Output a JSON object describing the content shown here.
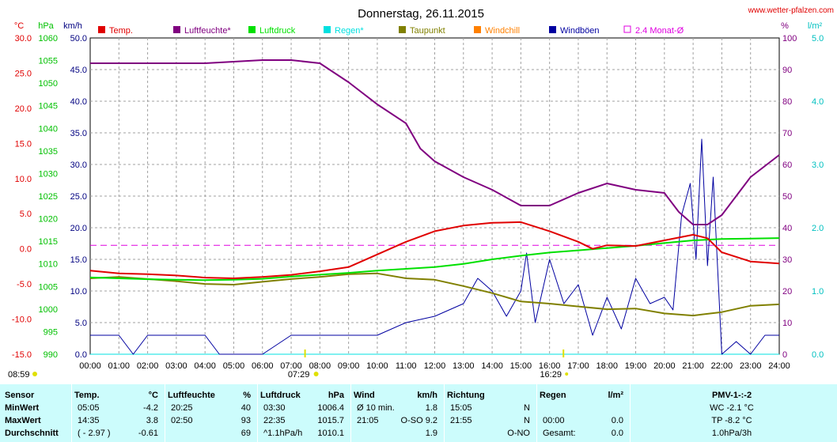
{
  "header": {
    "title": "Donnerstag, 26.11.2015",
    "site": "www.wetter-pfalzen.com",
    "units_left": [
      "°C",
      "hPa",
      "km/h"
    ],
    "units_right": [
      "%",
      "l/m²"
    ]
  },
  "legend": [
    {
      "label": "Temp.",
      "color": "#e00000"
    },
    {
      "label": "Luftfeuchte*",
      "color": "#800080"
    },
    {
      "label": "Luftdruck",
      "color": "#00e000"
    },
    {
      "label": "Regen*",
      "color": "#00e0e0"
    },
    {
      "label": "Taupunkt",
      "color": "#808000"
    },
    {
      "label": "Windchill",
      "color": "#ff8000"
    },
    {
      "label": "Windböen",
      "color": "#0000a0"
    },
    {
      "label": "2.4 Monat-Ø",
      "color": "#e000e0"
    }
  ],
  "sun": {
    "rise": "07:29",
    "set": "16:29",
    "prev_set": "08:59"
  },
  "chart_data": {
    "type": "line",
    "x_ticks": [
      "00:00",
      "01:00",
      "02:00",
      "03:00",
      "04:00",
      "05:00",
      "06:00",
      "07:00",
      "08:00",
      "09:00",
      "10:00",
      "11:00",
      "12:00",
      "13:00",
      "14:00",
      "15:00",
      "16:00",
      "17:00",
      "18:00",
      "19:00",
      "20:00",
      "21:00",
      "22:00",
      "23:00",
      "24:00"
    ],
    "axes": {
      "temp_c": {
        "min": -15,
        "max": 30,
        "ticks": [
          "30.0",
          "25.0",
          "20.0",
          "15.0",
          "10.0",
          "5.0",
          "0.0",
          "-5.0",
          "-10.0",
          "-15.0"
        ],
        "color": "#e00000"
      },
      "pressure_hpa": {
        "min": 990,
        "max": 1060,
        "ticks": [
          "1060",
          "1055",
          "1050",
          "1045",
          "1040",
          "1035",
          "1030",
          "1025",
          "1020",
          "1015",
          "1010",
          "1005",
          "1000",
          "995",
          "990"
        ],
        "color": "#00c000"
      },
      "wind_kmh": {
        "min": 0,
        "max": 50,
        "ticks": [
          "50.0",
          "45.0",
          "40.0",
          "35.0",
          "30.0",
          "25.0",
          "20.0",
          "15.0",
          "10.0",
          "5.0",
          "0.0"
        ],
        "color": "#000080"
      },
      "humidity_pct": {
        "min": 0,
        "max": 100,
        "ticks": [
          "100",
          "90",
          "80",
          "70",
          "60",
          "50",
          "40",
          "30",
          "20",
          "10",
          "0"
        ],
        "color": "#800080"
      },
      "rain_lm2": {
        "min": 0,
        "max": 5,
        "ticks": [
          "5.0",
          "4.0",
          "3.0",
          "2.0",
          "1.0",
          "0.0"
        ],
        "color": "#00c0c0"
      }
    },
    "grid": true,
    "monthly_avg_temp": 0.5,
    "series": [
      {
        "name": "Temp.",
        "axis": "temp_c",
        "color": "#e00000",
        "x": [
          0,
          1,
          2,
          3,
          4,
          5,
          6,
          7,
          8,
          9,
          10,
          11,
          12,
          13,
          14,
          15,
          16,
          17,
          17.5,
          18,
          19,
          20,
          21,
          21.5,
          22,
          23,
          24
        ],
        "y": [
          -3.1,
          -3.5,
          -3.6,
          -3.8,
          -4.1,
          -4.2,
          -4.0,
          -3.7,
          -3.2,
          -2.6,
          -0.8,
          1.0,
          2.5,
          3.3,
          3.7,
          3.8,
          2.5,
          1.0,
          0.0,
          0.5,
          0.4,
          1.2,
          2.0,
          1.5,
          -0.5,
          -1.8,
          -2.1
        ]
      },
      {
        "name": "Luftfeuchte*",
        "axis": "humidity_pct",
        "color": "#800080",
        "x": [
          0,
          1,
          2,
          3,
          4,
          5,
          6,
          7,
          8,
          9,
          10,
          11,
          11.5,
          12,
          13,
          14,
          15,
          16,
          17,
          18,
          19,
          20,
          20.5,
          21,
          21.5,
          22,
          23,
          24
        ],
        "y": [
          92,
          92,
          92,
          92,
          92,
          92.5,
          93,
          93,
          92,
          86,
          79,
          73,
          65,
          61,
          56,
          52,
          47,
          47,
          51,
          54,
          52,
          51,
          45,
          41,
          41,
          44,
          56,
          63
        ]
      },
      {
        "name": "Luftdruck",
        "axis": "pressure_hpa",
        "color": "#00e000",
        "x": [
          0,
          1,
          2,
          3,
          4,
          5,
          6,
          7,
          8,
          9,
          10,
          11,
          12,
          13,
          14,
          15,
          16,
          17,
          18,
          19,
          20,
          21,
          22,
          23,
          24
        ],
        "y": [
          1007.0,
          1006.8,
          1006.6,
          1006.5,
          1006.4,
          1006.5,
          1006.7,
          1007.2,
          1007.6,
          1008.0,
          1008.5,
          1008.9,
          1009.3,
          1010.0,
          1011.0,
          1011.8,
          1012.5,
          1013.0,
          1013.5,
          1014.0,
          1014.6,
          1015.2,
          1015.5,
          1015.6,
          1015.7
        ]
      },
      {
        "name": "Taupunkt",
        "axis": "temp_c",
        "color": "#808000",
        "x": [
          0,
          1,
          2,
          3,
          4,
          5,
          6,
          7,
          8,
          9,
          10,
          11,
          12,
          13,
          14,
          15,
          16,
          17,
          18,
          19,
          20,
          21,
          22,
          23,
          24
        ],
        "y": [
          -4.2,
          -4.0,
          -4.3,
          -4.6,
          -5.0,
          -5.1,
          -4.7,
          -4.3,
          -4.0,
          -3.6,
          -3.5,
          -4.2,
          -4.4,
          -5.3,
          -6.3,
          -7.5,
          -7.8,
          -8.2,
          -8.6,
          -8.5,
          -9.2,
          -9.5,
          -9.0,
          -8.1,
          -7.9
        ]
      },
      {
        "name": "Windböen",
        "axis": "wind_kmh",
        "color": "#0000a0",
        "x": [
          0,
          1,
          1.5,
          2,
          3,
          4,
          4.5,
          5,
          6,
          7,
          8,
          9,
          10,
          11,
          12,
          13,
          13.5,
          14,
          14.5,
          15,
          15.2,
          15.5,
          16,
          16.5,
          17,
          17.5,
          18,
          18.5,
          19,
          19.5,
          20,
          20.3,
          20.6,
          20.9,
          21.1,
          21.3,
          21.5,
          21.7,
          22,
          22.5,
          23,
          23.5,
          24
        ],
        "y": [
          3,
          3,
          0,
          3,
          3,
          3,
          0,
          0,
          0,
          3,
          3,
          3,
          3,
          5,
          6,
          8,
          12,
          10,
          6,
          10,
          16,
          5,
          15,
          8,
          11,
          3,
          9,
          4,
          12,
          8,
          9,
          7,
          22,
          27,
          15,
          34,
          14,
          28,
          0,
          2,
          0,
          3,
          3
        ]
      },
      {
        "name": "Regen*",
        "axis": "rain_lm2",
        "color": "#00e0e0",
        "x": [
          0,
          24
        ],
        "y": [
          0,
          0
        ]
      }
    ]
  },
  "stats": {
    "columns": [
      {
        "title": "Sensor",
        "unit": ""
      },
      {
        "title": "Temp.",
        "unit": "°C"
      },
      {
        "title": "Luftfeuchte",
        "unit": "%"
      },
      {
        "title": "Luftdruck",
        "unit": "hPa"
      },
      {
        "title": "Wind",
        "unit": "km/h"
      },
      {
        "title": "Richtung",
        "unit": ""
      },
      {
        "title": "Regen",
        "unit": "l/m²"
      },
      {
        "title": "PMV-1-:-2",
        "unit": ""
      }
    ],
    "rows": [
      {
        "label": "MinWert",
        "temp_time": "05:05",
        "temp_val": "-4.2",
        "hum_time": "20:25",
        "hum_val": "40",
        "press_time": "03:30",
        "press_val": "1006.4",
        "wind_time": "Ø 10 min.",
        "wind_val": "1.8",
        "dir_time": "15:05",
        "dir_val": "N",
        "rain_time": "",
        "rain_val": "",
        "pmv": "WC -2.1 °C"
      },
      {
        "label": "MaxWert",
        "temp_time": "14:35",
        "temp_val": "3.8",
        "hum_time": "02:50",
        "hum_val": "93",
        "press_time": "22:35",
        "press_val": "1015.7",
        "wind_time": "21:05",
        "wind_val": "O-SO 9.2",
        "dir_time": "21:55",
        "dir_val": "N",
        "rain_time": "00:00",
        "rain_val": "0.0",
        "pmv": "TP -8.2 °C"
      },
      {
        "label": "Durchschnitt",
        "temp_time": "( - 2.97 )",
        "temp_val": "-0.61",
        "hum_time": "",
        "hum_val": "69",
        "press_time": "^1.1hPa/h",
        "press_val": "1010.1",
        "wind_time": "",
        "wind_val": "1.9",
        "dir_time": "",
        "dir_val": "O-NO",
        "rain_time": "Gesamt:",
        "rain_val": "0.0",
        "pmv": "1.0hPa/3h"
      }
    ]
  }
}
